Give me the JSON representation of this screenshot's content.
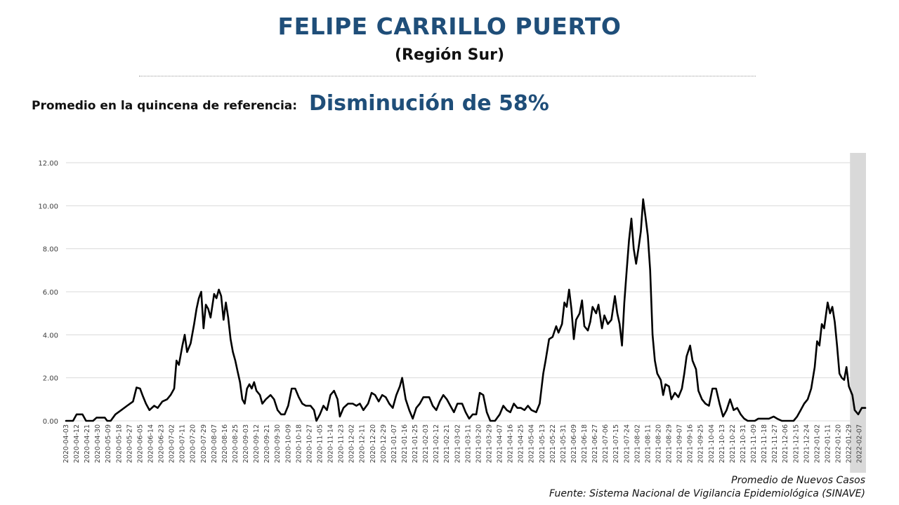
{
  "header": {
    "title": "FELIPE CARRILLO PUERTO",
    "subtitle": "(Región Sur)"
  },
  "metric": {
    "label": "Promedio en la quincena de referencia:",
    "value": "Disminución de 58%"
  },
  "footer": {
    "series_note": "Promedio de Nuevos Casos",
    "source": "Fuente: Sistema Nacional de Vigilancia Epidemiológica (SINAVE)"
  },
  "colors": {
    "title": "#1f4e79",
    "line": "#000000",
    "grid": "#d9d9d9",
    "shade": "#d9d9d9"
  },
  "chart_data": {
    "type": "line",
    "title": "",
    "xlabel": "",
    "ylabel": "",
    "ylim": [
      0,
      12
    ],
    "yticks": [
      "0.00",
      "2.00",
      "4.00",
      "6.00",
      "8.00",
      "10.00",
      "12.00"
    ],
    "grid": true,
    "x_start": "2020-04-03",
    "x_end": "2022-02-12",
    "shaded_from": "2022-01-30",
    "xticks": [
      "2020-04-03",
      "2020-04-12",
      "2020-04-21",
      "2020-04-30",
      "2020-05-09",
      "2020-05-18",
      "2020-05-27",
      "2020-06-05",
      "2020-06-14",
      "2020-06-23",
      "2020-07-02",
      "2020-07-11",
      "2020-07-20",
      "2020-07-29",
      "2020-08-07",
      "2020-08-16",
      "2020-08-25",
      "2020-09-03",
      "2020-09-12",
      "2020-09-21",
      "2020-09-30",
      "2020-10-09",
      "2020-10-18",
      "2020-10-27",
      "2020-11-05",
      "2020-11-14",
      "2020-11-23",
      "2020-12-02",
      "2020-12-11",
      "2020-12-20",
      "2020-12-29",
      "2021-01-07",
      "2021-01-16",
      "2021-01-25",
      "2021-02-03",
      "2021-02-12",
      "2021-02-21",
      "2021-03-02",
      "2021-03-11",
      "2021-03-20",
      "2021-03-29",
      "2021-04-07",
      "2021-04-16",
      "2021-04-25",
      "2021-05-04",
      "2021-05-13",
      "2021-05-22",
      "2021-05-31",
      "2021-06-09",
      "2021-06-18",
      "2021-06-27",
      "2021-07-06",
      "2021-07-15",
      "2021-07-24",
      "2021-08-02",
      "2021-08-11",
      "2021-08-20",
      "2021-08-29",
      "2021-09-07",
      "2021-09-16",
      "2021-09-25",
      "2021-10-04",
      "2021-10-13",
      "2021-10-22",
      "2021-10-31",
      "2021-11-09",
      "2021-11-18",
      "2021-11-27",
      "2021-12-06",
      "2021-12-15",
      "2021-12-24",
      "2022-01-02",
      "2022-01-11",
      "2022-01-20",
      "2022-01-29",
      "2022-02-07"
    ],
    "series": [
      {
        "name": "Promedio de Nuevos Casos",
        "points": [
          [
            "2020-04-03",
            0.0
          ],
          [
            "2020-04-09",
            0.0
          ],
          [
            "2020-04-12",
            0.3
          ],
          [
            "2020-04-17",
            0.3
          ],
          [
            "2020-04-20",
            0.0
          ],
          [
            "2020-04-26",
            0.0
          ],
          [
            "2020-04-29",
            0.15
          ],
          [
            "2020-05-06",
            0.15
          ],
          [
            "2020-05-08",
            0.0
          ],
          [
            "2020-05-11",
            0.0
          ],
          [
            "2020-05-15",
            0.3
          ],
          [
            "2020-05-20",
            0.5
          ],
          [
            "2020-05-25",
            0.7
          ],
          [
            "2020-05-30",
            0.9
          ],
          [
            "2020-06-02",
            1.55
          ],
          [
            "2020-06-05",
            1.5
          ],
          [
            "2020-06-07",
            1.2
          ],
          [
            "2020-06-10",
            0.8
          ],
          [
            "2020-06-13",
            0.5
          ],
          [
            "2020-06-17",
            0.7
          ],
          [
            "2020-06-20",
            0.6
          ],
          [
            "2020-06-24",
            0.9
          ],
          [
            "2020-06-28",
            1.0
          ],
          [
            "2020-07-01",
            1.2
          ],
          [
            "2020-07-04",
            1.5
          ],
          [
            "2020-07-06",
            2.8
          ],
          [
            "2020-07-08",
            2.6
          ],
          [
            "2020-07-11",
            3.5
          ],
          [
            "2020-07-13",
            4.0
          ],
          [
            "2020-07-15",
            3.2
          ],
          [
            "2020-07-18",
            3.6
          ],
          [
            "2020-07-21",
            4.5
          ],
          [
            "2020-07-23",
            5.2
          ],
          [
            "2020-07-25",
            5.7
          ],
          [
            "2020-07-27",
            6.0
          ],
          [
            "2020-07-29",
            4.3
          ],
          [
            "2020-07-31",
            5.4
          ],
          [
            "2020-08-02",
            5.2
          ],
          [
            "2020-08-04",
            4.8
          ],
          [
            "2020-08-07",
            5.9
          ],
          [
            "2020-08-09",
            5.7
          ],
          [
            "2020-08-11",
            6.1
          ],
          [
            "2020-08-13",
            5.8
          ],
          [
            "2020-08-15",
            4.7
          ],
          [
            "2020-08-17",
            5.5
          ],
          [
            "2020-08-19",
            4.8
          ],
          [
            "2020-08-21",
            3.8
          ],
          [
            "2020-08-23",
            3.2
          ],
          [
            "2020-08-25",
            2.8
          ],
          [
            "2020-08-27",
            2.3
          ],
          [
            "2020-08-29",
            1.8
          ],
          [
            "2020-08-31",
            1.0
          ],
          [
            "2020-09-02",
            0.8
          ],
          [
            "2020-09-04",
            1.5
          ],
          [
            "2020-09-06",
            1.7
          ],
          [
            "2020-09-08",
            1.5
          ],
          [
            "2020-09-10",
            1.8
          ],
          [
            "2020-09-12",
            1.4
          ],
          [
            "2020-09-15",
            1.2
          ],
          [
            "2020-09-17",
            0.8
          ],
          [
            "2020-09-20",
            1.0
          ],
          [
            "2020-09-24",
            1.2
          ],
          [
            "2020-09-27",
            1.0
          ],
          [
            "2020-09-30",
            0.5
          ],
          [
            "2020-10-03",
            0.3
          ],
          [
            "2020-10-06",
            0.3
          ],
          [
            "2020-10-09",
            0.7
          ],
          [
            "2020-10-12",
            1.5
          ],
          [
            "2020-10-15",
            1.5
          ],
          [
            "2020-10-18",
            1.1
          ],
          [
            "2020-10-21",
            0.8
          ],
          [
            "2020-10-24",
            0.7
          ],
          [
            "2020-10-28",
            0.7
          ],
          [
            "2020-10-31",
            0.5
          ],
          [
            "2020-11-02",
            0.0
          ],
          [
            "2020-11-05",
            0.3
          ],
          [
            "2020-11-08",
            0.7
          ],
          [
            "2020-11-11",
            0.5
          ],
          [
            "2020-11-14",
            1.2
          ],
          [
            "2020-11-17",
            1.4
          ],
          [
            "2020-11-20",
            1.0
          ],
          [
            "2020-11-22",
            0.2
          ],
          [
            "2020-11-25",
            0.6
          ],
          [
            "2020-11-29",
            0.8
          ],
          [
            "2020-12-03",
            0.8
          ],
          [
            "2020-12-06",
            0.7
          ],
          [
            "2020-12-09",
            0.8
          ],
          [
            "2020-12-12",
            0.5
          ],
          [
            "2020-12-16",
            0.8
          ],
          [
            "2020-12-19",
            1.3
          ],
          [
            "2020-12-22",
            1.2
          ],
          [
            "2020-12-25",
            0.9
          ],
          [
            "2020-12-28",
            1.2
          ],
          [
            "2020-12-31",
            1.1
          ],
          [
            "2021-01-03",
            0.8
          ],
          [
            "2021-01-06",
            0.6
          ],
          [
            "2021-01-09",
            1.2
          ],
          [
            "2021-01-12",
            1.6
          ],
          [
            "2021-01-14",
            2.0
          ],
          [
            "2021-01-17",
            1.0
          ],
          [
            "2021-01-20",
            0.5
          ],
          [
            "2021-01-23",
            0.1
          ],
          [
            "2021-01-26",
            0.6
          ],
          [
            "2021-01-29",
            0.8
          ],
          [
            "2021-02-01",
            1.1
          ],
          [
            "2021-02-06",
            1.1
          ],
          [
            "2021-02-09",
            0.7
          ],
          [
            "2021-02-12",
            0.5
          ],
          [
            "2021-02-15",
            0.9
          ],
          [
            "2021-02-18",
            1.2
          ],
          [
            "2021-02-21",
            1.0
          ],
          [
            "2021-02-24",
            0.7
          ],
          [
            "2021-02-27",
            0.4
          ],
          [
            "2021-03-02",
            0.8
          ],
          [
            "2021-03-06",
            0.8
          ],
          [
            "2021-03-09",
            0.4
          ],
          [
            "2021-03-12",
            0.1
          ],
          [
            "2021-03-15",
            0.3
          ],
          [
            "2021-03-18",
            0.3
          ],
          [
            "2021-03-21",
            1.3
          ],
          [
            "2021-03-24",
            1.2
          ],
          [
            "2021-03-27",
            0.4
          ],
          [
            "2021-03-30",
            0.0
          ],
          [
            "2021-04-03",
            0.0
          ],
          [
            "2021-04-07",
            0.3
          ],
          [
            "2021-04-10",
            0.7
          ],
          [
            "2021-04-13",
            0.5
          ],
          [
            "2021-04-16",
            0.4
          ],
          [
            "2021-04-19",
            0.8
          ],
          [
            "2021-04-22",
            0.6
          ],
          [
            "2021-04-25",
            0.6
          ],
          [
            "2021-04-28",
            0.5
          ],
          [
            "2021-05-01",
            0.7
          ],
          [
            "2021-05-04",
            0.5
          ],
          [
            "2021-05-08",
            0.4
          ],
          [
            "2021-05-11",
            0.8
          ],
          [
            "2021-05-14",
            2.2
          ],
          [
            "2021-05-16",
            2.8
          ],
          [
            "2021-05-19",
            3.8
          ],
          [
            "2021-05-22",
            3.9
          ],
          [
            "2021-05-25",
            4.4
          ],
          [
            "2021-05-27",
            4.1
          ],
          [
            "2021-05-30",
            4.5
          ],
          [
            "2021-06-01",
            5.5
          ],
          [
            "2021-06-03",
            5.3
          ],
          [
            "2021-06-05",
            6.1
          ],
          [
            "2021-06-07",
            5.2
          ],
          [
            "2021-06-09",
            3.8
          ],
          [
            "2021-06-11",
            4.7
          ],
          [
            "2021-06-14",
            5.0
          ],
          [
            "2021-06-16",
            5.6
          ],
          [
            "2021-06-18",
            4.4
          ],
          [
            "2021-06-21",
            4.2
          ],
          [
            "2021-06-23",
            4.6
          ],
          [
            "2021-06-25",
            5.3
          ],
          [
            "2021-06-28",
            5.0
          ],
          [
            "2021-06-30",
            5.4
          ],
          [
            "2021-07-03",
            4.3
          ],
          [
            "2021-07-05",
            4.9
          ],
          [
            "2021-07-08",
            4.5
          ],
          [
            "2021-07-11",
            4.7
          ],
          [
            "2021-07-14",
            5.8
          ],
          [
            "2021-07-16",
            5.0
          ],
          [
            "2021-07-18",
            4.5
          ],
          [
            "2021-07-20",
            3.5
          ],
          [
            "2021-07-22",
            5.5
          ],
          [
            "2021-07-24",
            7.0
          ],
          [
            "2021-07-26",
            8.4
          ],
          [
            "2021-07-28",
            9.4
          ],
          [
            "2021-07-30",
            8.0
          ],
          [
            "2021-08-01",
            7.3
          ],
          [
            "2021-08-03",
            8.0
          ],
          [
            "2021-08-05",
            8.8
          ],
          [
            "2021-08-07",
            10.3
          ],
          [
            "2021-08-09",
            9.5
          ],
          [
            "2021-08-11",
            8.6
          ],
          [
            "2021-08-13",
            7.0
          ],
          [
            "2021-08-15",
            4.0
          ],
          [
            "2021-08-17",
            2.8
          ],
          [
            "2021-08-19",
            2.2
          ],
          [
            "2021-08-22",
            1.9
          ],
          [
            "2021-08-24",
            1.2
          ],
          [
            "2021-08-26",
            1.7
          ],
          [
            "2021-08-29",
            1.6
          ],
          [
            "2021-08-31",
            1.0
          ],
          [
            "2021-09-03",
            1.3
          ],
          [
            "2021-09-06",
            1.1
          ],
          [
            "2021-09-09",
            1.5
          ],
          [
            "2021-09-11",
            2.2
          ],
          [
            "2021-09-13",
            3.0
          ],
          [
            "2021-09-16",
            3.5
          ],
          [
            "2021-09-18",
            2.8
          ],
          [
            "2021-09-21",
            2.4
          ],
          [
            "2021-09-23",
            1.4
          ],
          [
            "2021-09-26",
            1.0
          ],
          [
            "2021-09-29",
            0.8
          ],
          [
            "2021-10-02",
            0.7
          ],
          [
            "2021-10-05",
            1.5
          ],
          [
            "2021-10-08",
            1.5
          ],
          [
            "2021-10-11",
            0.8
          ],
          [
            "2021-10-14",
            0.2
          ],
          [
            "2021-10-17",
            0.5
          ],
          [
            "2021-10-20",
            1.0
          ],
          [
            "2021-10-23",
            0.5
          ],
          [
            "2021-10-26",
            0.6
          ],
          [
            "2021-10-29",
            0.3
          ],
          [
            "2021-11-01",
            0.1
          ],
          [
            "2021-11-04",
            0.0
          ],
          [
            "2021-11-10",
            0.0
          ],
          [
            "2021-11-13",
            0.1
          ],
          [
            "2021-11-17",
            0.1
          ],
          [
            "2021-11-22",
            0.1
          ],
          [
            "2021-11-26",
            0.2
          ],
          [
            "2021-11-29",
            0.1
          ],
          [
            "2021-12-03",
            0.0
          ],
          [
            "2021-12-13",
            0.0
          ],
          [
            "2021-12-16",
            0.2
          ],
          [
            "2021-12-19",
            0.5
          ],
          [
            "2021-12-22",
            0.8
          ],
          [
            "2021-12-25",
            1.0
          ],
          [
            "2021-12-28",
            1.5
          ],
          [
            "2021-12-31",
            2.5
          ],
          [
            "2022-01-02",
            3.7
          ],
          [
            "2022-01-04",
            3.5
          ],
          [
            "2022-01-06",
            4.5
          ],
          [
            "2022-01-08",
            4.3
          ],
          [
            "2022-01-11",
            5.5
          ],
          [
            "2022-01-13",
            5.0
          ],
          [
            "2022-01-15",
            5.3
          ],
          [
            "2022-01-17",
            4.6
          ],
          [
            "2022-01-19",
            3.5
          ],
          [
            "2022-01-21",
            2.2
          ],
          [
            "2022-01-23",
            2.0
          ],
          [
            "2022-01-25",
            1.9
          ],
          [
            "2022-01-27",
            2.5
          ],
          [
            "2022-01-29",
            1.6
          ],
          [
            "2022-02-01",
            1.2
          ],
          [
            "2022-02-03",
            0.5
          ],
          [
            "2022-02-06",
            0.3
          ],
          [
            "2022-02-09",
            0.6
          ],
          [
            "2022-02-12",
            0.6
          ]
        ]
      }
    ]
  }
}
